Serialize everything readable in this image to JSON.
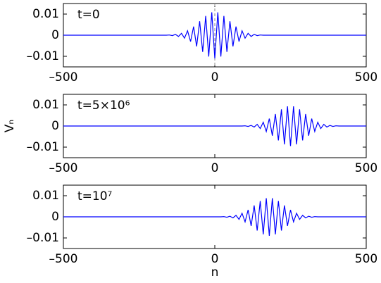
{
  "chart_data": [
    {
      "type": "line",
      "annotation": "t=0",
      "zero_line": true,
      "xlim": [
        -500,
        500
      ],
      "ylim": [
        -0.015,
        0.015
      ],
      "xticks": [
        {
          "value": -500,
          "label": "–500"
        },
        0,
        500
      ],
      "yticks": [
        {
          "value": -0.01,
          "label": "–0.01"
        },
        0,
        0.01
      ],
      "x": [
        -500,
        -160,
        -150,
        -140,
        -130,
        -120,
        -110,
        -100,
        -90,
        -80,
        -70,
        -60,
        -50,
        -40,
        -30,
        -20,
        -10,
        0,
        10,
        20,
        30,
        40,
        50,
        60,
        70,
        80,
        90,
        100,
        110,
        120,
        130,
        140,
        150,
        160,
        500
      ],
      "series": [
        {
          "color": "#0000ff",
          "values": [
            0,
            0,
            0.0001,
            -0.0002,
            0.0004,
            -0.0006,
            0.0009,
            -0.0014,
            0.0021,
            -0.003,
            0.0041,
            -0.0053,
            0.0066,
            -0.0079,
            0.0091,
            -0.0101,
            0.0108,
            -0.011,
            0.0108,
            -0.0101,
            0.0091,
            -0.0079,
            0.0066,
            -0.0053,
            0.0041,
            -0.003,
            0.0021,
            -0.0014,
            0.0009,
            -0.0006,
            0.0004,
            -0.0002,
            0.0001,
            0,
            0
          ]
        }
      ]
    },
    {
      "type": "line",
      "annotation": "t=5×10⁶",
      "ylabel": "Vₙ",
      "xlim": [
        -500,
        500
      ],
      "ylim": [
        -0.015,
        0.015
      ],
      "xticks": [
        {
          "value": -500,
          "label": "–500"
        },
        0,
        500
      ],
      "yticks": [
        {
          "value": -0.01,
          "label": "–0.01"
        },
        0,
        0.01
      ],
      "x": [
        -500,
        90,
        100,
        110,
        120,
        130,
        140,
        150,
        160,
        170,
        180,
        190,
        200,
        210,
        220,
        230,
        240,
        250,
        260,
        270,
        280,
        290,
        300,
        310,
        320,
        330,
        340,
        350,
        360,
        370,
        380,
        390,
        400,
        410,
        500
      ],
      "series": [
        {
          "color": "#0000ff",
          "values": [
            0,
            0,
            0.0001,
            -0.0002,
            0.0003,
            -0.0005,
            0.0008,
            -0.0012,
            0.0018,
            -0.0026,
            0.0035,
            -0.0046,
            0.0057,
            -0.0068,
            0.0079,
            -0.0087,
            0.0093,
            -0.0095,
            0.0093,
            -0.0087,
            0.0079,
            -0.0068,
            0.0057,
            -0.0046,
            0.0035,
            -0.0026,
            0.0018,
            -0.0012,
            0.0008,
            -0.0005,
            0.0003,
            -0.0002,
            0.0001,
            0,
            0
          ]
        }
      ]
    },
    {
      "type": "line",
      "annotation": "t=10⁷",
      "xlabel": "n",
      "xlim": [
        -500,
        500
      ],
      "ylim": [
        -0.015,
        0.015
      ],
      "xticks": [
        {
          "value": -500,
          "label": "–500"
        },
        0,
        500
      ],
      "yticks": [
        {
          "value": -0.01,
          "label": "–0.01"
        },
        0,
        0.01
      ],
      "x": [
        -500,
        20,
        30,
        40,
        50,
        60,
        70,
        80,
        90,
        100,
        110,
        120,
        130,
        140,
        150,
        160,
        170,
        180,
        190,
        200,
        210,
        220,
        230,
        240,
        250,
        260,
        270,
        280,
        290,
        300,
        310,
        320,
        330,
        340,
        500
      ],
      "series": [
        {
          "color": "#0000ff",
          "values": [
            0,
            0,
            0.0001,
            -0.0002,
            0.0003,
            -0.0005,
            0.0007,
            -0.0012,
            0.0017,
            -0.0024,
            0.0033,
            -0.0043,
            0.0054,
            -0.0065,
            0.0075,
            -0.0083,
            0.0088,
            -0.009,
            0.0088,
            -0.0083,
            0.0075,
            -0.0065,
            0.0054,
            -0.0043,
            0.0033,
            -0.0024,
            0.0017,
            -0.0012,
            0.0007,
            -0.0005,
            0.0003,
            -0.0002,
            0.0001,
            0,
            0
          ]
        }
      ]
    }
  ]
}
